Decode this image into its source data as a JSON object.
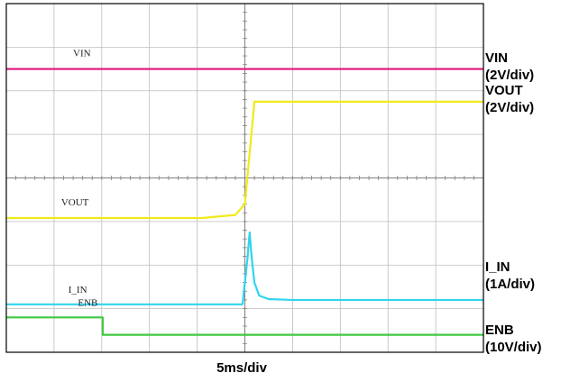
{
  "chart_data": {
    "type": "line",
    "x_divisions": 10,
    "y_divisions": 8,
    "grid": true,
    "timebase": "5ms/div",
    "x_range": [
      0,
      10
    ],
    "y_range": [
      0,
      8
    ],
    "series": [
      {
        "name": "VIN",
        "label": "VIN",
        "side_label": "VIN",
        "scale": "(2V/div)",
        "color": "#e0167a",
        "x": [
          0,
          10
        ],
        "y": [
          6.5,
          6.5
        ]
      },
      {
        "name": "VOUT",
        "label": "VOUT",
        "side_label": "VOUT",
        "scale": "(2V/div)",
        "color": "#f0ea1a",
        "x": [
          0,
          4.1,
          4.8,
          5.0,
          5.2,
          10
        ],
        "y": [
          3.08,
          3.08,
          3.15,
          3.4,
          5.75,
          5.75
        ]
      },
      {
        "name": "I_IN",
        "label": "I_IN",
        "side_label": "I_IN",
        "scale": "(1A/div)",
        "color": "#30d4ee",
        "x": [
          0,
          4.95,
          5.05,
          5.1,
          5.14,
          5.2,
          5.3,
          5.5,
          6.0,
          10
        ],
        "y": [
          1.1,
          1.1,
          2.1,
          2.75,
          2.2,
          1.6,
          1.3,
          1.22,
          1.2,
          1.2
        ]
      },
      {
        "name": "ENB",
        "label": "ENB",
        "side_label": "ENB",
        "scale": "(10V/div)",
        "color": "#3ec83e",
        "x": [
          0,
          2.02,
          2.02,
          10
        ],
        "y": [
          0.8,
          0.8,
          0.4,
          0.4
        ]
      }
    ]
  }
}
